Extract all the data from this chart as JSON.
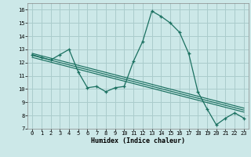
{
  "xlabel": "Humidex (Indice chaleur)",
  "xlim": [
    -0.5,
    23.5
  ],
  "ylim": [
    7,
    16.5
  ],
  "xticks": [
    0,
    1,
    2,
    3,
    4,
    5,
    6,
    7,
    8,
    9,
    10,
    11,
    12,
    13,
    14,
    15,
    16,
    17,
    18,
    19,
    20,
    21,
    22,
    23
  ],
  "yticks": [
    7,
    8,
    9,
    10,
    11,
    12,
    13,
    14,
    15,
    16
  ],
  "bg_color": "#cce8e8",
  "line_color": "#1a7060",
  "grid_color": "#aacccc",
  "main_line": [
    12.6,
    12.4,
    12.2,
    12.6,
    13.0,
    11.3,
    10.1,
    10.2,
    9.8,
    10.1,
    10.2,
    12.1,
    13.6,
    15.9,
    15.5,
    15.0,
    14.3,
    12.7,
    9.8,
    8.5,
    7.3,
    7.8,
    8.2,
    7.8
  ],
  "trend_line1": [
    12.7,
    12.52,
    12.34,
    12.16,
    11.98,
    11.8,
    11.62,
    11.44,
    11.26,
    11.08,
    10.9,
    10.72,
    10.54,
    10.36,
    10.18,
    10.0,
    9.82,
    9.64,
    9.46,
    9.28,
    9.1,
    8.92,
    8.74,
    8.56
  ],
  "trend_line2": [
    12.55,
    12.37,
    12.19,
    12.01,
    11.83,
    11.65,
    11.47,
    11.29,
    11.11,
    10.93,
    10.75,
    10.57,
    10.39,
    10.21,
    10.03,
    9.85,
    9.67,
    9.49,
    9.31,
    9.13,
    8.95,
    8.77,
    8.59,
    8.41
  ],
  "trend_line3": [
    12.4,
    12.22,
    12.04,
    11.86,
    11.68,
    11.5,
    11.32,
    11.14,
    10.96,
    10.78,
    10.6,
    10.42,
    10.24,
    10.06,
    9.88,
    9.7,
    9.52,
    9.34,
    9.16,
    8.98,
    8.8,
    8.62,
    8.44,
    8.26
  ]
}
